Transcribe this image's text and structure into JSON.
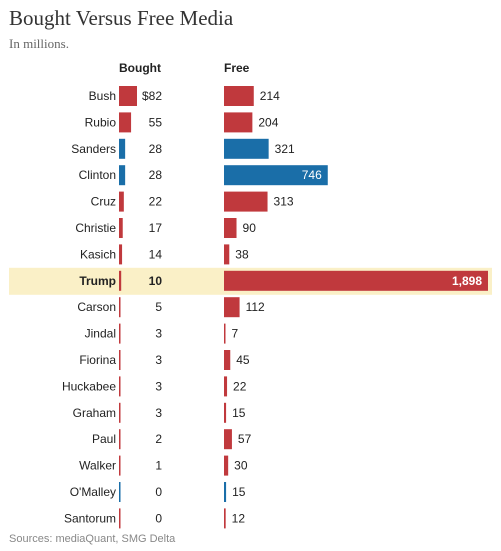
{
  "title": "Bought Versus Free Media",
  "subtitle": "In millions.",
  "source": "Sources: mediaQuant, SMG Delta",
  "colors": {
    "republican": "#c0393d",
    "democrat": "#1a6ea8",
    "highlight_row": "#faf0c7"
  },
  "chart_data": {
    "type": "bar",
    "title": "Bought Versus Free Media",
    "subtitle": "In millions.",
    "categories": [
      "Bush",
      "Rubio",
      "Sanders",
      "Clinton",
      "Cruz",
      "Christie",
      "Kasich",
      "Trump",
      "Carson",
      "Jindal",
      "Fiorina",
      "Huckabee",
      "Graham",
      "Paul",
      "Walker",
      "O'Malley",
      "Santorum"
    ],
    "party": [
      "R",
      "R",
      "D",
      "D",
      "R",
      "R",
      "R",
      "R",
      "R",
      "R",
      "R",
      "R",
      "R",
      "R",
      "R",
      "D",
      "R"
    ],
    "highlight": "Trump",
    "series": [
      {
        "name": "Bought",
        "values": [
          82,
          55,
          28,
          28,
          22,
          17,
          14,
          10,
          5,
          3,
          3,
          3,
          3,
          2,
          1,
          0,
          0
        ],
        "labels": [
          "$82",
          "55",
          "28",
          "28",
          "22",
          "17",
          "14",
          "10",
          "5",
          "3",
          "3",
          "3",
          "3",
          "2",
          "1",
          "0",
          "0"
        ]
      },
      {
        "name": "Free",
        "values": [
          214,
          204,
          321,
          746,
          313,
          90,
          38,
          1898,
          112,
          7,
          45,
          22,
          15,
          57,
          30,
          15,
          12
        ],
        "labels": [
          "214",
          "204",
          "321",
          "746",
          "313",
          "90",
          "38",
          "1,898",
          "112",
          "7",
          "45",
          "22",
          "15",
          "57",
          "30",
          "15",
          "12"
        ]
      }
    ]
  }
}
